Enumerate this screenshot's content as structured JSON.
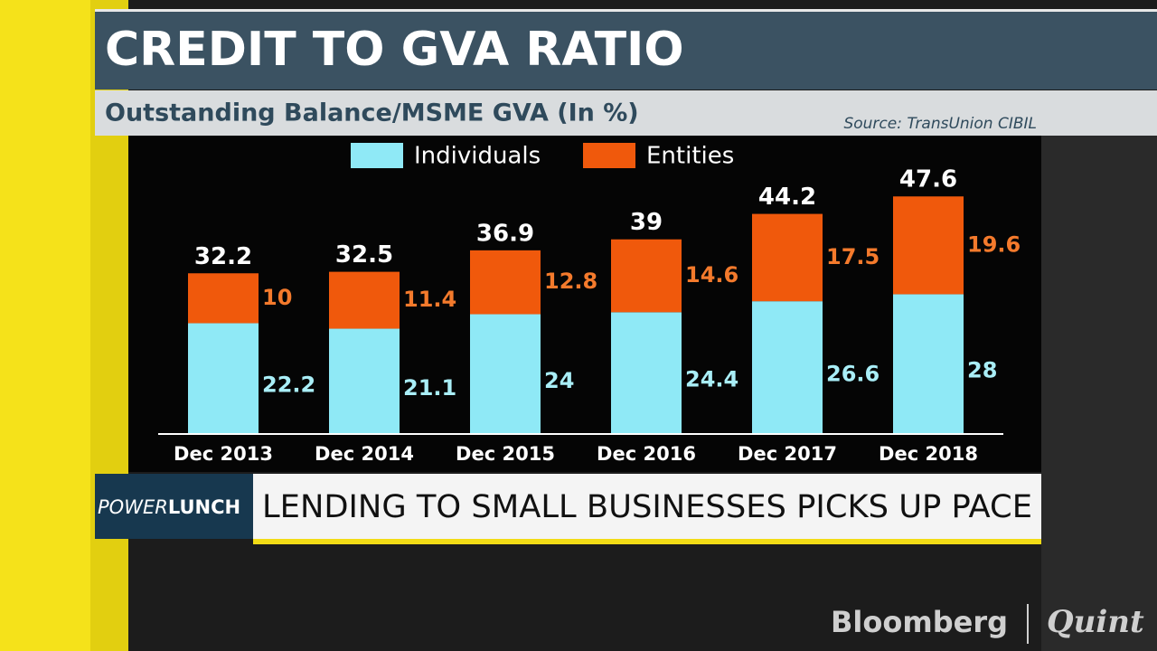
{
  "chart_data": {
    "type": "stacked_bar",
    "title": "CREDIT TO GVA RATIO",
    "subtitle": "Outstanding Balance/MSME GVA (In %)",
    "source": "Source: TransUnion CIBIL",
    "categories": [
      "Dec 2013",
      "Dec 2014",
      "Dec 2015",
      "Dec 2016",
      "Dec 2017",
      "Dec 2018"
    ],
    "series": [
      {
        "name": "Individuals",
        "color": "#8fe9f6",
        "label_color": "#a9eef7",
        "values": [
          22.2,
          21.1,
          24,
          24.4,
          26.6,
          28
        ]
      },
      {
        "name": "Entities",
        "color": "#f0590c",
        "label_color": "#f47a2c",
        "values": [
          10,
          11.4,
          12.8,
          14.6,
          17.5,
          19.6
        ]
      }
    ],
    "totals": [
      32.2,
      32.5,
      36.9,
      39,
      44.2,
      47.6
    ]
  },
  "ticker": {
    "show_name": [
      "POWER",
      "LUNCH"
    ],
    "headline": "LENDING TO SMALL BUSINESSES PICKS UP PACE"
  },
  "branding": [
    "Bloomberg",
    "Quint"
  ]
}
